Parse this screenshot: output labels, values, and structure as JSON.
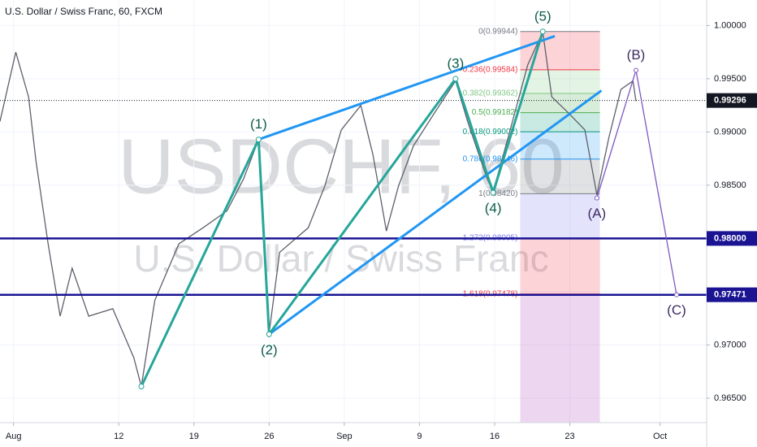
{
  "chart_data": {
    "type": "line",
    "title": "U.S. Dollar / Swiss Franc, 60, FXCM",
    "watermark": [
      "USDCHF, 60",
      "U.S. Dollar / Swiss Franc"
    ],
    "x": [
      -0.9,
      0.15,
      1.0,
      1.5,
      2.3,
      3.1,
      3.9,
      5.0,
      6.6,
      8.0,
      8.5,
      9.4,
      11.0,
      12.6,
      14.2,
      15.3,
      16.3,
      17.0,
      17.7,
      19.6,
      20.7,
      21.8,
      23.1,
      23.9,
      24.8,
      25.6,
      26.6,
      28.0,
      29.4,
      30.2,
      31.5,
      31.9,
      32.9,
      34.2,
      35.2,
      35.8,
      36.9,
      38.0,
      38.8,
      39.6,
      40.4,
      41.2,
      41.4
    ],
    "values": [
      0.991,
      0.9975,
      0.9933,
      0.9872,
      0.9795,
      0.9727,
      0.9772,
      0.9727,
      0.9734,
      0.9688,
      0.9661,
      0.9742,
      0.9795,
      0.981,
      0.9826,
      0.9856,
      0.9893,
      0.9711,
      0.9787,
      0.981,
      0.9849,
      0.9902,
      0.9925,
      0.9879,
      0.9807,
      0.9849,
      0.9887,
      0.9918,
      0.9948,
      0.991,
      0.9856,
      0.9844,
      0.9895,
      0.9963,
      0.9994,
      0.9933,
      0.9918,
      0.9902,
      0.9841,
      0.9895,
      0.994,
      0.9948,
      0.9929
    ],
    "color": "#5d606b",
    "xlim": [
      -0.9,
      46.1
    ],
    "ylim": [
      0.9627,
      1.0024
    ],
    "xticks": [
      {
        "value": 0,
        "label": "Aug"
      },
      {
        "value": 7,
        "label": "12"
      },
      {
        "value": 12,
        "label": "19"
      },
      {
        "value": 17,
        "label": "26"
      },
      {
        "value": 22,
        "label": "Sep"
      },
      {
        "value": 27,
        "label": "9"
      },
      {
        "value": 32,
        "label": "16"
      },
      {
        "value": 37,
        "label": "23"
      },
      {
        "value": 43,
        "label": "Oct"
      }
    ],
    "yticks": [
      {
        "value": 0.965,
        "label": "0.96500"
      },
      {
        "value": 0.97,
        "label": "0.97000"
      },
      {
        "value": 0.975,
        "label": "0.97500"
      },
      {
        "value": 0.98,
        "label": "0.98000"
      },
      {
        "value": 0.985,
        "label": "0.98500"
      },
      {
        "value": 0.99,
        "label": "0.99000"
      },
      {
        "value": 0.995,
        "label": "0.99500"
      },
      {
        "value": 1.0,
        "label": "1.00000"
      }
    ],
    "last_price": {
      "value": 0.99296,
      "label": "0.99296"
    },
    "levels": [
      {
        "value": 0.98,
        "label": "0.98000",
        "color": "#1a1493"
      },
      {
        "value": 0.97471,
        "label": "0.97471",
        "color": "#1a1493"
      }
    ],
    "fib": {
      "x_range": [
        33.7,
        39.0
      ],
      "fill_below": "rgba(171,71,188,0.22)",
      "levels": [
        {
          "value": 0.99944,
          "label": "0(0.99944)",
          "color": "#787b86"
        },
        {
          "value": 0.99584,
          "label": "0.236(0.99584)",
          "color": "#f23645"
        },
        {
          "value": 0.99362,
          "label": "0.382(0.99362)",
          "color": "#81c784"
        },
        {
          "value": 0.99182,
          "label": "0.5(0.99182)",
          "color": "#4caf50"
        },
        {
          "value": 0.99002,
          "label": "0.618(0.99002)",
          "color": "#089981"
        },
        {
          "value": 0.98746,
          "label": "0.786(0.98746)",
          "color": "#2196f3"
        },
        {
          "value": 0.9842,
          "label": "1(0.98420)",
          "color": "#787b86"
        },
        {
          "value": 0.98005,
          "label": "1.272(0.98005)",
          "color": "#7e7ff2"
        },
        {
          "value": 0.97478,
          "label": "1.618(0.97478)",
          "color": "#f23645"
        }
      ]
    },
    "impulse": {
      "color": "#26a69a",
      "x": [
        8.5,
        16.3,
        17.0,
        29.4,
        31.9,
        35.2
      ],
      "y": [
        0.9661,
        0.9893,
        0.971,
        0.995,
        0.9843,
        0.99944
      ]
    },
    "correction": {
      "color": "#7e57c2",
      "x": [
        38.8,
        41.4,
        44.1
      ],
      "y": [
        0.9838,
        0.9958,
        0.97471
      ]
    },
    "channels": [
      {
        "color": "#2196f3",
        "x": [
          16.3,
          36.0
        ],
        "y": [
          0.9893,
          0.99901
        ]
      },
      {
        "color": "#2196f3",
        "x": [
          17.0,
          39.1
        ],
        "y": [
          0.971,
          0.99389
        ]
      }
    ],
    "waves": [
      {
        "label": "(1)",
        "x": 16.3,
        "y": 0.9893,
        "position": "above",
        "color": "#0d5c4a"
      },
      {
        "label": "(2)",
        "x": 17.0,
        "y": 0.971,
        "position": "below",
        "color": "#0d5c4a"
      },
      {
        "label": "(3)",
        "x": 29.4,
        "y": 0.995,
        "position": "above",
        "color": "#0d5c4a"
      },
      {
        "label": "(4)",
        "x": 31.9,
        "y": 0.9843,
        "position": "below",
        "color": "#0d5c4a"
      },
      {
        "label": "(5)",
        "x": 35.2,
        "y": 0.99944,
        "position": "above",
        "color": "#0d5c4a"
      },
      {
        "label": "(A)",
        "x": 38.8,
        "y": 0.9838,
        "position": "below",
        "color": "#3d2b63"
      },
      {
        "label": "(B)",
        "x": 41.4,
        "y": 0.9958,
        "position": "above",
        "color": "#3d2b63"
      },
      {
        "label": "(C)",
        "x": 44.1,
        "y": 0.97471,
        "position": "below",
        "color": "#3d2b63"
      }
    ]
  }
}
